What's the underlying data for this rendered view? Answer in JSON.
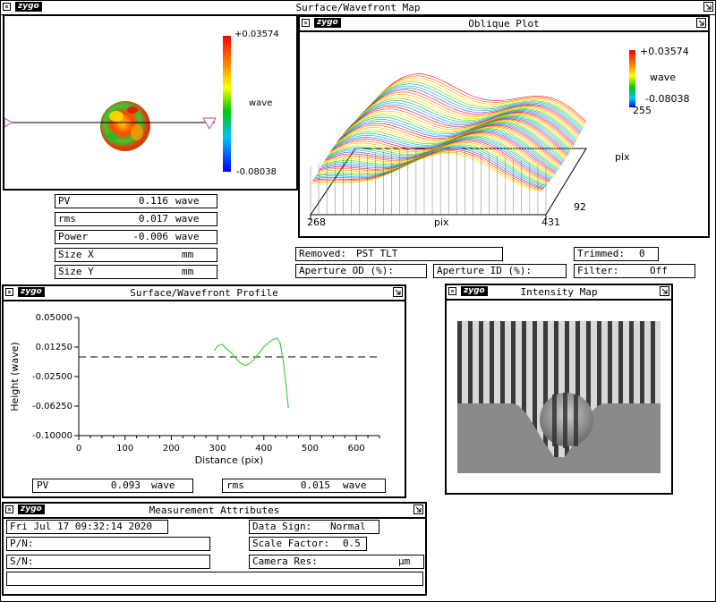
{
  "main_window": {
    "title": "Surface/Wavefront Map"
  },
  "logo_text": "zygo",
  "surface_map": {
    "scale_max": "+0.03574",
    "scale_min": "-0.08038",
    "scale_unit": "wave",
    "colors": [
      "#ff0000",
      "#ff8000",
      "#ffff00",
      "#00cc00",
      "#00c0ff",
      "#0000ff"
    ]
  },
  "surface_stats": [
    {
      "label": "PV",
      "value": "0.116",
      "unit": "wave"
    },
    {
      "label": "rms",
      "value": "0.017",
      "unit": "wave"
    },
    {
      "label": "Power",
      "value": "-0.006",
      "unit": "wave"
    },
    {
      "label": "Size X",
      "value": "",
      "unit": "mm"
    },
    {
      "label": "Size Y",
      "value": "",
      "unit": "mm"
    }
  ],
  "oblique_plot": {
    "title": "Oblique Plot",
    "scale_max": "+0.03574",
    "scale_min": "-0.08038",
    "scale_unit": "wave",
    "x_axis_label": "pix",
    "x_min": "268",
    "x_max": "431",
    "y_axis_label": "pix",
    "y_min": "92",
    "y_max": "255"
  },
  "status_fields": {
    "removed_label": "Removed:",
    "removed_value": "PST TLT",
    "trimmed_label": "Trimmed:",
    "trimmed_value": "0",
    "aperture_od_label": "Aperture OD (%):",
    "aperture_id_label": "Aperture ID (%):",
    "filter_label": "Filter:",
    "filter_value": "Off"
  },
  "profile": {
    "title": "Surface/Wavefront Profile",
    "pv_label": "PV",
    "pv_value": "0.093",
    "pv_unit": "wave",
    "rms_label": "rms",
    "rms_value": "0.015",
    "rms_unit": "wave"
  },
  "chart_data": {
    "type": "line",
    "xlabel": "Distance (pix)",
    "ylabel": "Height (wave)",
    "xlim": [
      0,
      650
    ],
    "ylim": [
      -0.1,
      0.05
    ],
    "x_ticks": [
      "0",
      "100",
      "200",
      "300",
      "400",
      "500",
      "600"
    ],
    "y_ticks": [
      "0.05000",
      "0.01250",
      "-0.02500",
      "-0.06250",
      "-0.10000"
    ],
    "reference_line_y": 0.0,
    "series": [
      {
        "color": "#44cc44",
        "x": [
          293,
          300,
          310,
          320,
          330,
          340,
          350,
          360,
          370,
          380,
          390,
          400,
          410,
          420,
          428,
          435,
          442,
          448,
          453
        ],
        "y": [
          0.008,
          0.014,
          0.016,
          0.01,
          0.005,
          -0.002,
          -0.008,
          -0.011,
          -0.008,
          -0.002,
          0.005,
          0.013,
          0.018,
          0.022,
          0.024,
          0.018,
          -0.005,
          -0.035,
          -0.065
        ]
      }
    ]
  },
  "intensity_map": {
    "title": "Intensity Map"
  },
  "measurement": {
    "title": "Measurement Attributes",
    "timestamp": "Fri Jul 17 09:32:14 2020",
    "pn_label": "P/N:",
    "sn_label": "S/N:",
    "data_sign_label": "Data Sign:",
    "data_sign_value": "Normal",
    "scale_factor_label": "Scale Factor:",
    "scale_factor_value": "0.5",
    "camera_res_label": "Camera Res:",
    "camera_res_unit": "µm"
  }
}
